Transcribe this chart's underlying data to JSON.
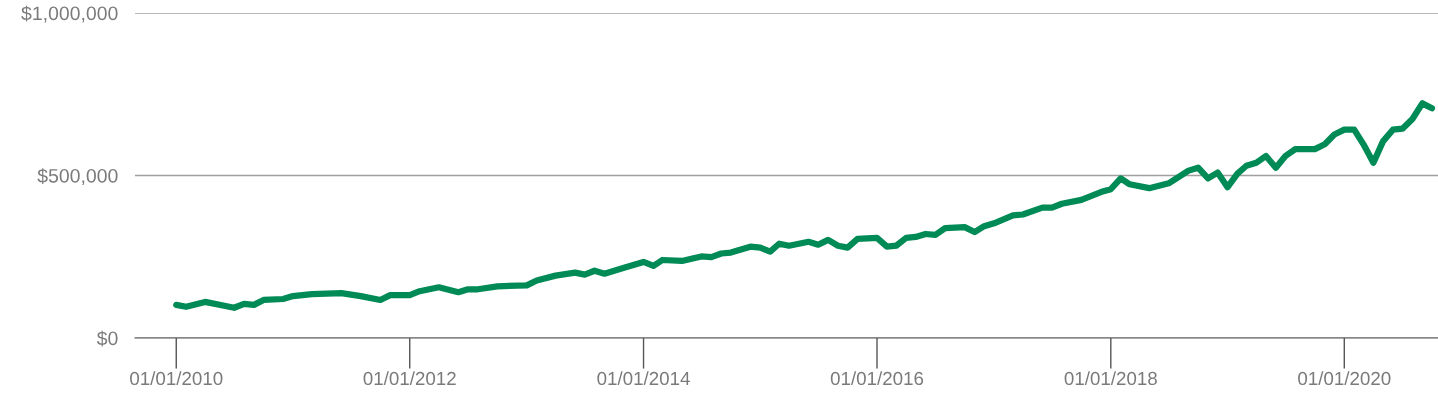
{
  "chart_data": {
    "type": "line",
    "x": [
      "2010-01",
      "2010-02",
      "2010-04",
      "2010-07",
      "2010-08",
      "2010-09",
      "2010-10",
      "2010-12",
      "2011-01",
      "2011-03",
      "2011-06",
      "2011-08",
      "2011-10",
      "2011-11",
      "2012-01",
      "2012-02",
      "2012-04",
      "2012-06",
      "2012-07",
      "2012-08",
      "2012-10",
      "2013-01",
      "2013-02",
      "2013-04",
      "2013-06",
      "2013-07",
      "2013-08",
      "2013-09",
      "2013-11",
      "2014-01",
      "2014-02",
      "2014-03",
      "2014-05",
      "2014-07",
      "2014-08",
      "2014-09",
      "2014-10",
      "2014-12",
      "2015-01",
      "2015-02",
      "2015-03",
      "2015-04",
      "2015-06",
      "2015-07",
      "2015-08",
      "2015-09",
      "2015-10",
      "2015-11",
      "2016-01",
      "2016-02",
      "2016-03",
      "2016-04",
      "2016-05",
      "2016-06",
      "2016-07",
      "2016-08",
      "2016-10",
      "2016-11",
      "2016-12",
      "2017-01",
      "2017-03",
      "2017-04",
      "2017-06",
      "2017-07",
      "2017-08",
      "2017-10",
      "2017-12",
      "2018-01",
      "2018-02",
      "2018-03",
      "2018-05",
      "2018-07",
      "2018-09",
      "2018-10",
      "2018-11",
      "2018-12",
      "2019-01",
      "2019-02",
      "2019-03",
      "2019-04",
      "2019-05",
      "2019-06",
      "2019-07",
      "2019-08",
      "2019-10",
      "2019-11",
      "2019-12",
      "2020-01",
      "2020-02",
      "2020-03",
      "2020-04",
      "2020-05",
      "2020-06",
      "2020-07",
      "2020-08",
      "2020-09",
      "2020-10"
    ],
    "series": [
      {
        "color": "#008a55",
        "values": [
          102000,
          96000,
          111000,
          93000,
          105000,
          102000,
          117000,
          120000,
          129000,
          135000,
          138000,
          129000,
          117000,
          132000,
          132000,
          144000,
          156000,
          141000,
          150000,
          150000,
          159000,
          162000,
          177000,
          192000,
          201000,
          195000,
          207000,
          198000,
          216000,
          234000,
          222000,
          240000,
          237000,
          251000,
          249000,
          260000,
          263000,
          281000,
          278000,
          266000,
          290000,
          284000,
          296000,
          287000,
          302000,
          284000,
          278000,
          305000,
          308000,
          281000,
          284000,
          308000,
          311000,
          320000,
          317000,
          338000,
          341000,
          326000,
          344000,
          353000,
          377000,
          380000,
          401000,
          401000,
          413000,
          425000,
          449000,
          458000,
          491000,
          473000,
          461000,
          476000,
          515000,
          524000,
          491000,
          509000,
          464000,
          506000,
          530000,
          539000,
          560000,
          524000,
          560000,
          581000,
          581000,
          596000,
          626000,
          641000,
          641000,
          596000,
          539000,
          605000,
          641000,
          644000,
          674000,
          722000,
          707000
        ]
      }
    ],
    "xlim": [
      "2009-08-25",
      "2020-10-20"
    ],
    "xticks": [
      {
        "value": "2010-01-01",
        "label": "01/01/2010"
      },
      {
        "value": "2012-01-01",
        "label": "01/01/2012"
      },
      {
        "value": "2014-01-01",
        "label": "01/01/2014"
      },
      {
        "value": "2016-01-01",
        "label": "01/01/2016"
      },
      {
        "value": "2018-01-01",
        "label": "01/01/2018"
      },
      {
        "value": "2020-01-01",
        "label": "01/01/2020"
      }
    ],
    "ylim": [
      0,
      1000000
    ],
    "yticks": [
      {
        "value": 0,
        "label": "$0"
      },
      {
        "value": 500000,
        "label": "$500,000"
      },
      {
        "value": 1000000,
        "label": "$1,000,000"
      }
    ],
    "grid": "y",
    "legend": false,
    "marker": "none",
    "line_style": "solid"
  }
}
